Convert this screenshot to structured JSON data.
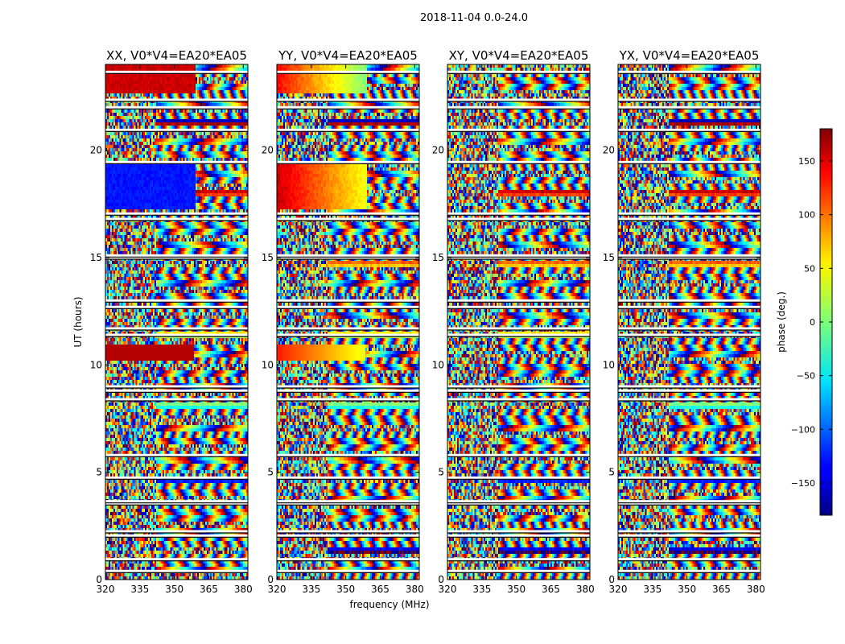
{
  "chart_data": {
    "type": "heatmap",
    "title": "2018-11-04 0.0-24.0",
    "xlabel": "frequency (MHz)",
    "ylabel": "UT (hours)",
    "xlim": [
      320,
      382
    ],
    "ylim": [
      0,
      24
    ],
    "xticks": [
      "320",
      "335",
      "350",
      "365",
      "380"
    ],
    "yticks": [
      "0",
      "5",
      "10",
      "15",
      "20"
    ],
    "panels": [
      {
        "title": "XX, V0*V4=EA20*EA05",
        "polarization": "XX"
      },
      {
        "title": "YY, V0*V4=EA20*EA05",
        "polarization": "YY"
      },
      {
        "title": "XY, V0*V4=EA20*EA05",
        "polarization": "XY"
      },
      {
        "title": "YX, V0*V4=EA20*EA05",
        "polarization": "YX"
      }
    ],
    "colorbar": {
      "label": "phase (deg.)",
      "range": [
        -180,
        180
      ],
      "ticks": [
        "150",
        "100",
        "50",
        "0",
        "−50",
        "−100",
        "−150"
      ],
      "colormap": "jet"
    },
    "flagged_rows_ut": [
      0.4,
      0.95,
      2.05,
      2.25,
      3.55,
      3.65,
      4.75,
      5.8,
      8.4,
      8.8,
      9.0,
      11.4,
      11.7,
      12.7,
      13.0,
      15.0,
      15.1,
      16.8,
      17.05,
      19.45,
      20.95,
      22.0,
      22.35,
      23.65
    ]
  }
}
